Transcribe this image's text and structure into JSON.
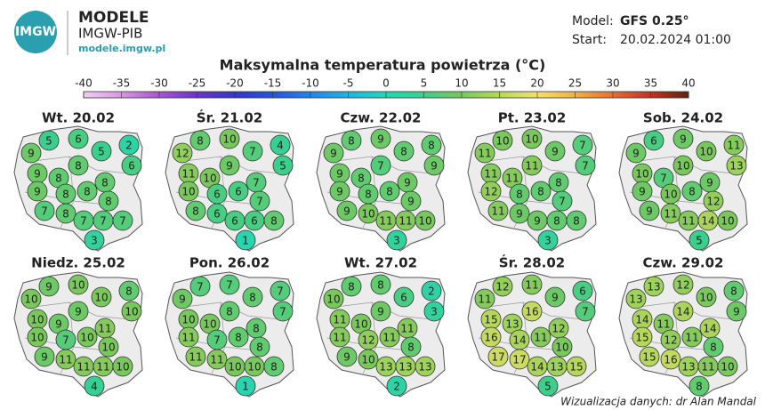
{
  "header": {
    "logo": "IMGW",
    "brand": "MODELE",
    "org": "IMGW-PIB",
    "url": "modele.imgw.pl",
    "model_label": "Model:",
    "model": "GFS 0.25°",
    "start_label": "Start:",
    "start": "20.02.2024 01:00"
  },
  "title": "Maksymalna temperatura powietrza (°C)",
  "colorbar": {
    "ticks": [
      -40,
      -35,
      -30,
      -25,
      -20,
      -15,
      -10,
      -5,
      0,
      5,
      10,
      15,
      20,
      25,
      30,
      35,
      40
    ],
    "colors": [
      "#f2cdf2",
      "#d896e2",
      "#a455d2",
      "#6a35c4",
      "#3636c6",
      "#2454d8",
      "#2284e8",
      "#22b2e2",
      "#24d6b6",
      "#3ccf8c",
      "#78c85c",
      "#b6d85a",
      "#f2e070",
      "#f2b044",
      "#e27034",
      "#c03222",
      "#5e2410"
    ]
  },
  "maps": [
    {
      "day": "Wt. 20.02",
      "values": [
        5,
        6,
        2,
        9,
        5,
        8,
        6,
        9,
        8,
        8,
        9,
        8,
        8,
        8,
        7,
        8,
        7,
        7,
        7,
        3
      ]
    },
    {
      "day": "Śr. 21.02",
      "values": [
        8,
        10,
        4,
        12,
        7,
        9,
        5,
        11,
        10,
        7,
        10,
        6,
        6,
        7,
        8,
        6,
        6,
        6,
        8,
        1
      ]
    },
    {
      "day": "Czw. 22.02",
      "values": [
        8,
        9,
        8,
        9,
        8,
        7,
        9,
        9,
        8,
        9,
        9,
        8,
        8,
        9,
        9,
        10,
        11,
        11,
        10,
        3
      ]
    },
    {
      "day": "Pt. 23.02",
      "values": [
        10,
        10,
        7,
        11,
        9,
        11,
        7,
        11,
        11,
        8,
        12,
        8,
        8,
        7,
        11,
        9,
        9,
        8,
        8,
        3
      ]
    },
    {
      "day": "Sob. 24.02",
      "values": [
        6,
        9,
        11,
        9,
        10,
        10,
        13,
        10,
        7,
        9,
        9,
        10,
        8,
        12,
        9,
        11,
        11,
        14,
        10,
        5
      ]
    },
    {
      "day": "Niedz. 25.02",
      "values": [
        9,
        10,
        8,
        10,
        10,
        9,
        10,
        10,
        9,
        11,
        10,
        7,
        10,
        10,
        9,
        11,
        11,
        11,
        10,
        4
      ]
    },
    {
      "day": "Pon. 26.02",
      "values": [
        7,
        7,
        7,
        9,
        8,
        8,
        7,
        10,
        10,
        8,
        11,
        7,
        8,
        8,
        11,
        11,
        10,
        10,
        8,
        1
      ]
    },
    {
      "day": "Wt. 27.02",
      "values": [
        8,
        8,
        2,
        10,
        6,
        9,
        3,
        11,
        10,
        11,
        11,
        12,
        11,
        8,
        9,
        10,
        13,
        13,
        13,
        2
      ]
    },
    {
      "day": "Śr. 28.02",
      "values": [
        12,
        11,
        6,
        11,
        9,
        16,
        7,
        15,
        13,
        12,
        16,
        14,
        11,
        10,
        17,
        17,
        14,
        13,
        15,
        5
      ]
    },
    {
      "day": "Czw. 29.02",
      "values": [
        13,
        12,
        8,
        13,
        10,
        14,
        9,
        14,
        11,
        14,
        15,
        12,
        11,
        8,
        15,
        16,
        13,
        11,
        10,
        8
      ]
    }
  ],
  "credit": "Wizualizacja danych: dr Alan Mandal"
}
